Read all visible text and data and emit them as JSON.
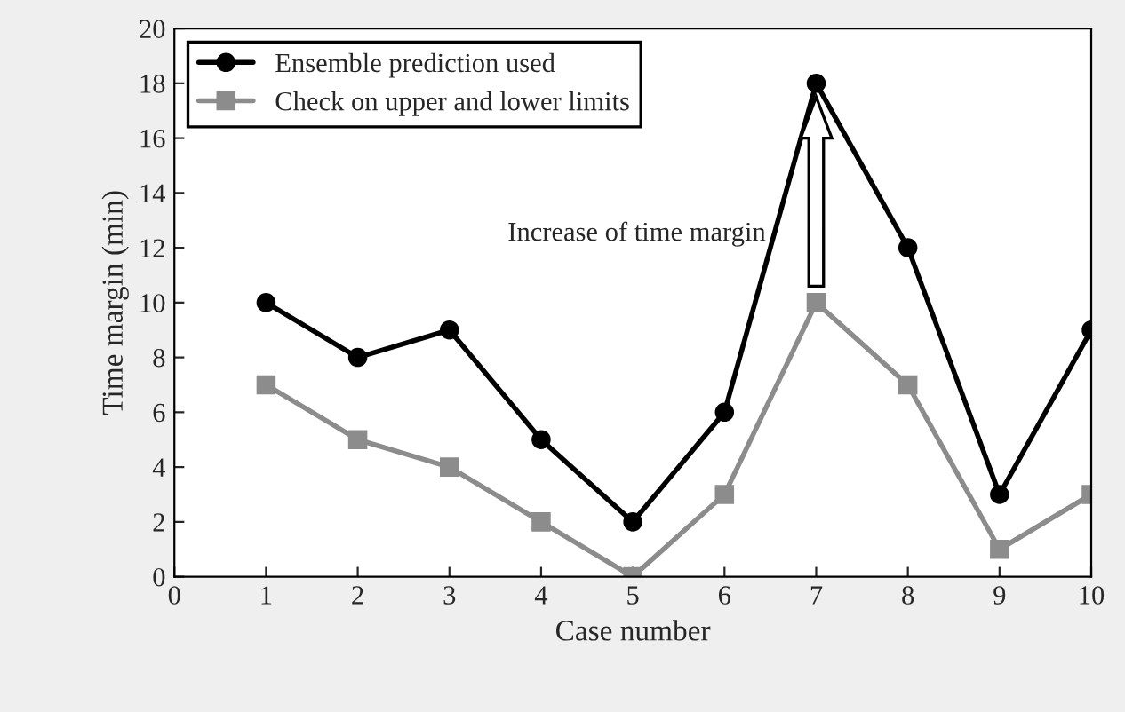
{
  "chart_data": {
    "type": "line",
    "xlabel": "Case number",
    "ylabel": "Time margin (min)",
    "x": [
      1,
      2,
      3,
      4,
      5,
      6,
      7,
      8,
      9,
      10
    ],
    "series": [
      {
        "name": "Ensemble prediction used",
        "color": "#000000",
        "marker": "circle",
        "values": [
          10,
          8,
          9,
          5,
          2,
          6,
          18,
          12,
          3,
          9
        ]
      },
      {
        "name": "Check on upper and lower limits",
        "color": "#8c8c8c",
        "marker": "square",
        "values": [
          7,
          5,
          4,
          2,
          0,
          3,
          10,
          7,
          1,
          3
        ]
      }
    ],
    "annotations": [
      "Increase of time margin"
    ],
    "xlim": [
      0,
      10
    ],
    "ylim": [
      0,
      20
    ],
    "xticks": [
      0,
      1,
      2,
      3,
      4,
      5,
      6,
      7,
      8,
      9,
      10
    ],
    "yticks": [
      0,
      2,
      4,
      6,
      8,
      10,
      12,
      14,
      16,
      18,
      20
    ],
    "grid": false,
    "legend": "top left",
    "line_style": "solid"
  }
}
